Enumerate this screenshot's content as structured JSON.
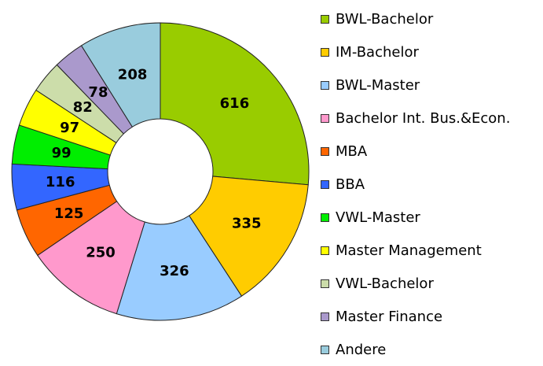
{
  "chart_data": {
    "type": "pie",
    "donut": true,
    "legend_position": "right",
    "series": [
      {
        "name": "BWL-Bachelor",
        "value": 616,
        "color": "#99CC00"
      },
      {
        "name": "IM-Bachelor",
        "value": 335,
        "color": "#FFCC00"
      },
      {
        "name": "BWL-Master",
        "value": 326,
        "color": "#99CCFF"
      },
      {
        "name": "Bachelor Int. Bus.&Econ.",
        "value": 250,
        "color": "#FF99CC"
      },
      {
        "name": "MBA",
        "value": 125,
        "color": "#FF6600"
      },
      {
        "name": "BBA",
        "value": 116,
        "color": "#3366FF"
      },
      {
        "name": "VWL-Master",
        "value": 99,
        "color": "#00EE00"
      },
      {
        "name": "Master Management",
        "value": 97,
        "color": "#FFFF00"
      },
      {
        "name": "VWL-Bachelor",
        "value": 82,
        "color": "#CCDDAA"
      },
      {
        "name": "Master Finance",
        "value": 78,
        "color": "#AA99CC"
      },
      {
        "name": "Andere",
        "value": 208,
        "color": "#99CCDD"
      }
    ]
  }
}
